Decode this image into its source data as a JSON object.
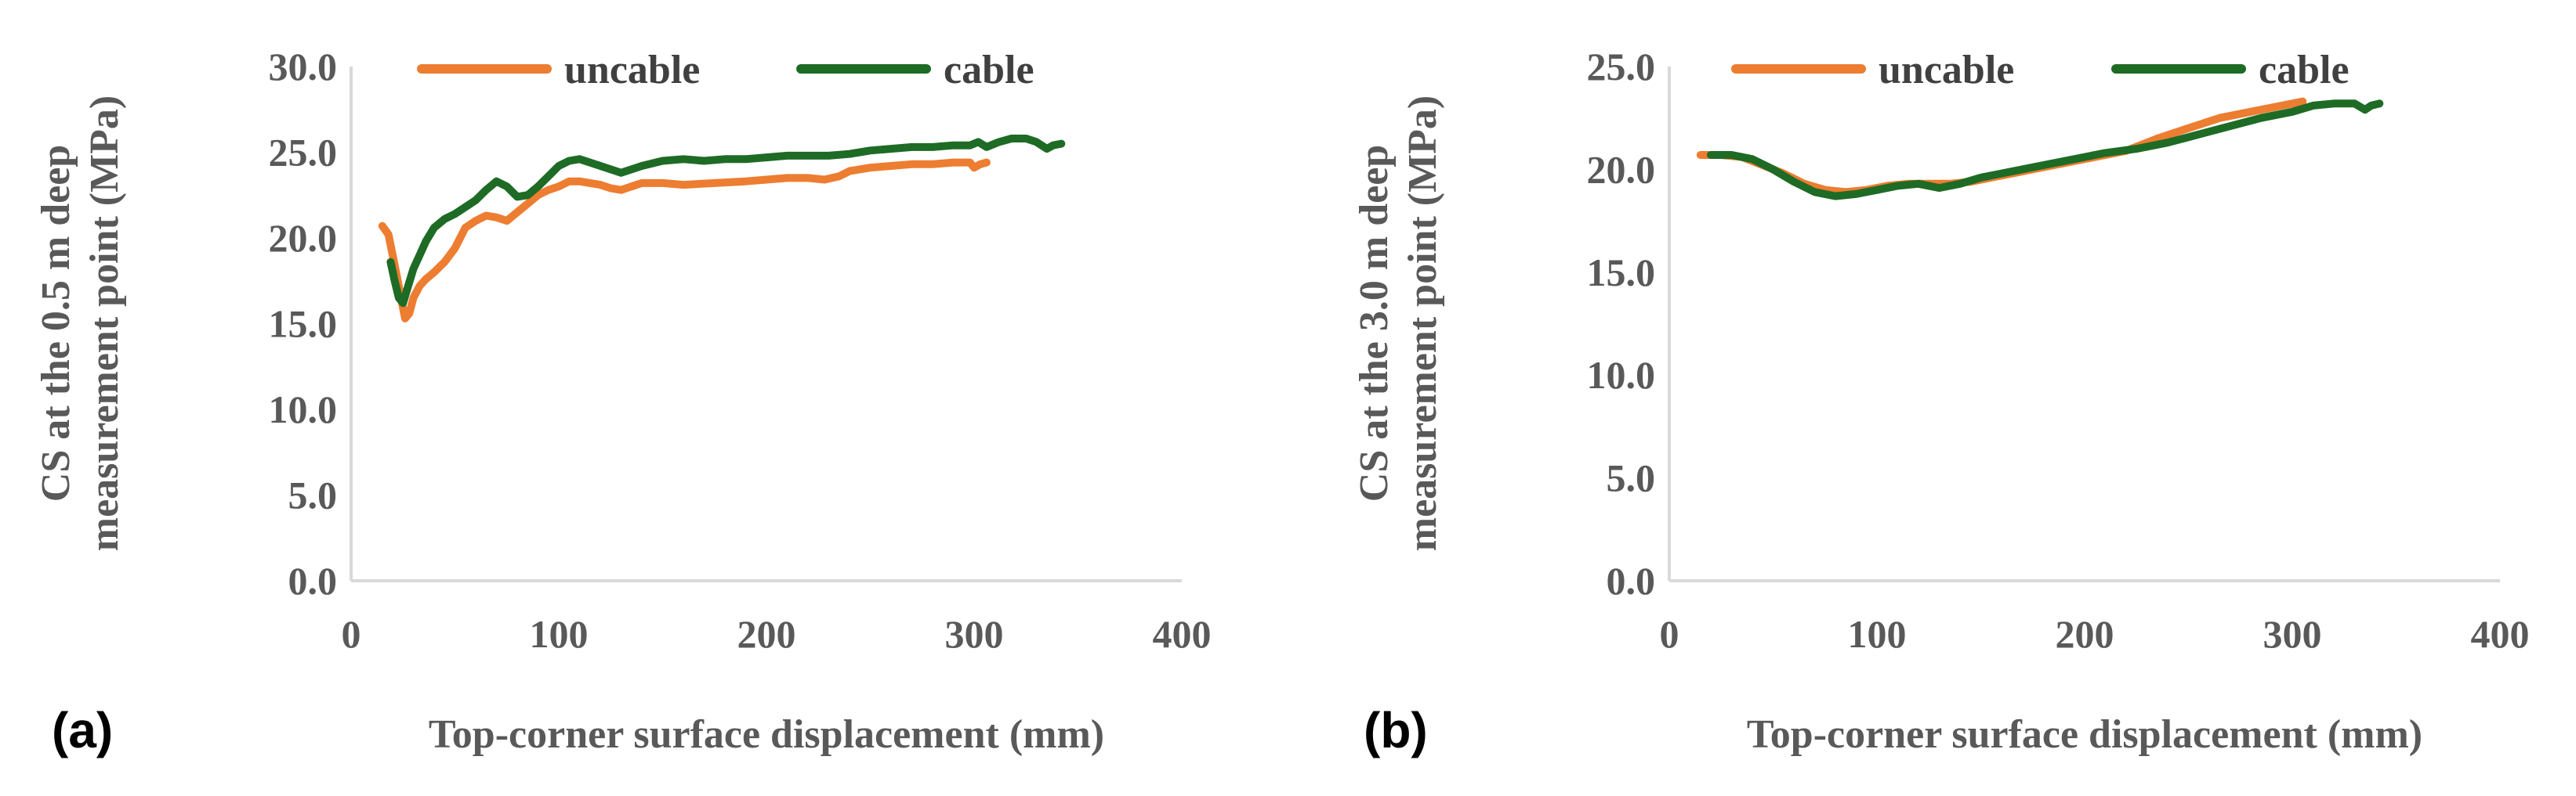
{
  "colors": {
    "uncable": "#ED7D31",
    "cable": "#1E6B25",
    "axis": "#D9D9D9",
    "text": "#595959"
  },
  "chart_data": [
    {
      "panel_label": "(a)",
      "type": "line",
      "xlabel": "Top-corner surface displacement (mm)",
      "ylabel_lines": [
        "CS at the 0.5 m deep",
        "measurement point (MPa)"
      ],
      "xlim": [
        0,
        400
      ],
      "ylim": [
        0,
        30
      ],
      "xticks": [
        "0",
        "100",
        "200",
        "300",
        "400"
      ],
      "yticks": [
        "0.0",
        "5.0",
        "10.0",
        "15.0",
        "20.0",
        "25.0",
        "30.0"
      ],
      "legend": [
        "uncable",
        "cable"
      ],
      "legend_position": "top",
      "grid": false,
      "series": [
        {
          "name": "uncable",
          "points": [
            [
              15,
              20.7
            ],
            [
              18,
              20.2
            ],
            [
              20,
              19.0
            ],
            [
              22,
              17.8
            ],
            [
              24,
              16.5
            ],
            [
              26,
              15.3
            ],
            [
              28,
              15.6
            ],
            [
              30,
              16.5
            ],
            [
              33,
              17.2
            ],
            [
              36,
              17.6
            ],
            [
              40,
              18.0
            ],
            [
              45,
              18.6
            ],
            [
              50,
              19.4
            ],
            [
              55,
              20.6
            ],
            [
              60,
              21.0
            ],
            [
              65,
              21.3
            ],
            [
              70,
              21.2
            ],
            [
              75,
              21.0
            ],
            [
              80,
              21.5
            ],
            [
              85,
              22.0
            ],
            [
              90,
              22.5
            ],
            [
              95,
              22.8
            ],
            [
              100,
              23.0
            ],
            [
              105,
              23.3
            ],
            [
              110,
              23.3
            ],
            [
              115,
              23.2
            ],
            [
              120,
              23.1
            ],
            [
              125,
              22.9
            ],
            [
              130,
              22.8
            ],
            [
              135,
              23.0
            ],
            [
              140,
              23.2
            ],
            [
              150,
              23.2
            ],
            [
              160,
              23.1
            ],
            [
              175,
              23.2
            ],
            [
              190,
              23.3
            ],
            [
              200,
              23.4
            ],
            [
              210,
              23.5
            ],
            [
              220,
              23.5
            ],
            [
              228,
              23.4
            ],
            [
              235,
              23.6
            ],
            [
              240,
              23.9
            ],
            [
              250,
              24.1
            ],
            [
              260,
              24.2
            ],
            [
              270,
              24.3
            ],
            [
              280,
              24.3
            ],
            [
              290,
              24.4
            ],
            [
              298,
              24.4
            ],
            [
              300,
              24.1
            ],
            [
              303,
              24.3
            ],
            [
              306,
              24.4
            ]
          ]
        },
        {
          "name": "cable",
          "points": [
            [
              19,
              18.6
            ],
            [
              21,
              17.5
            ],
            [
              23,
              16.5
            ],
            [
              25,
              16.2
            ],
            [
              27,
              17.0
            ],
            [
              30,
              18.2
            ],
            [
              33,
              19.0
            ],
            [
              36,
              19.8
            ],
            [
              40,
              20.6
            ],
            [
              45,
              21.1
            ],
            [
              50,
              21.4
            ],
            [
              55,
              21.8
            ],
            [
              60,
              22.2
            ],
            [
              65,
              22.8
            ],
            [
              70,
              23.3
            ],
            [
              75,
              23.0
            ],
            [
              80,
              22.4
            ],
            [
              85,
              22.5
            ],
            [
              90,
              23.0
            ],
            [
              95,
              23.6
            ],
            [
              100,
              24.2
            ],
            [
              105,
              24.5
            ],
            [
              110,
              24.6
            ],
            [
              115,
              24.4
            ],
            [
              120,
              24.2
            ],
            [
              125,
              24.0
            ],
            [
              130,
              23.8
            ],
            [
              135,
              24.0
            ],
            [
              140,
              24.2
            ],
            [
              150,
              24.5
            ],
            [
              160,
              24.6
            ],
            [
              170,
              24.5
            ],
            [
              180,
              24.6
            ],
            [
              190,
              24.6
            ],
            [
              200,
              24.7
            ],
            [
              210,
              24.8
            ],
            [
              220,
              24.8
            ],
            [
              230,
              24.8
            ],
            [
              240,
              24.9
            ],
            [
              250,
              25.1
            ],
            [
              260,
              25.2
            ],
            [
              270,
              25.3
            ],
            [
              280,
              25.3
            ],
            [
              290,
              25.4
            ],
            [
              298,
              25.4
            ],
            [
              302,
              25.6
            ],
            [
              306,
              25.3
            ],
            [
              312,
              25.6
            ],
            [
              318,
              25.8
            ],
            [
              325,
              25.8
            ],
            [
              330,
              25.6
            ],
            [
              335,
              25.2
            ],
            [
              338,
              25.4
            ],
            [
              342,
              25.5
            ]
          ]
        }
      ]
    },
    {
      "panel_label": "(b)",
      "type": "line",
      "xlabel": "Top-corner surface displacement (mm)",
      "ylabel_lines": [
        "CS at the 3.0 m deep",
        "measurement point (MPa)"
      ],
      "xlim": [
        0,
        400
      ],
      "ylim": [
        0,
        25
      ],
      "xticks": [
        "0",
        "100",
        "200",
        "300",
        "400"
      ],
      "yticks": [
        "0.0",
        "5.0",
        "10.0",
        "15.0",
        "20.0",
        "25.0"
      ],
      "legend": [
        "uncable",
        "cable"
      ],
      "legend_position": "top",
      "grid": false,
      "series": [
        {
          "name": "uncable",
          "points": [
            [
              15,
              20.7
            ],
            [
              25,
              20.7
            ],
            [
              35,
              20.6
            ],
            [
              45,
              20.2
            ],
            [
              55,
              19.8
            ],
            [
              65,
              19.3
            ],
            [
              75,
              19.0
            ],
            [
              85,
              18.9
            ],
            [
              95,
              19.0
            ],
            [
              105,
              19.2
            ],
            [
              115,
              19.3
            ],
            [
              125,
              19.3
            ],
            [
              135,
              19.3
            ],
            [
              145,
              19.4
            ],
            [
              155,
              19.6
            ],
            [
              165,
              19.8
            ],
            [
              175,
              20.0
            ],
            [
              190,
              20.3
            ],
            [
              205,
              20.6
            ],
            [
              220,
              20.9
            ],
            [
              235,
              21.5
            ],
            [
              250,
              22.0
            ],
            [
              265,
              22.5
            ],
            [
              280,
              22.8
            ],
            [
              295,
              23.1
            ],
            [
              305,
              23.3
            ]
          ]
        },
        {
          "name": "cable",
          "points": [
            [
              20,
              20.7
            ],
            [
              30,
              20.7
            ],
            [
              40,
              20.5
            ],
            [
              50,
              20.0
            ],
            [
              60,
              19.4
            ],
            [
              70,
              18.9
            ],
            [
              80,
              18.7
            ],
            [
              90,
              18.8
            ],
            [
              100,
              19.0
            ],
            [
              110,
              19.2
            ],
            [
              120,
              19.3
            ],
            [
              130,
              19.1
            ],
            [
              140,
              19.3
            ],
            [
              150,
              19.6
            ],
            [
              165,
              19.9
            ],
            [
              180,
              20.2
            ],
            [
              195,
              20.5
            ],
            [
              210,
              20.8
            ],
            [
              225,
              21.0
            ],
            [
              240,
              21.3
            ],
            [
              255,
              21.7
            ],
            [
              270,
              22.1
            ],
            [
              285,
              22.5
            ],
            [
              300,
              22.8
            ],
            [
              310,
              23.1
            ],
            [
              320,
              23.2
            ],
            [
              330,
              23.2
            ],
            [
              335,
              22.9
            ],
            [
              338,
              23.1
            ],
            [
              342,
              23.2
            ]
          ]
        }
      ]
    }
  ]
}
